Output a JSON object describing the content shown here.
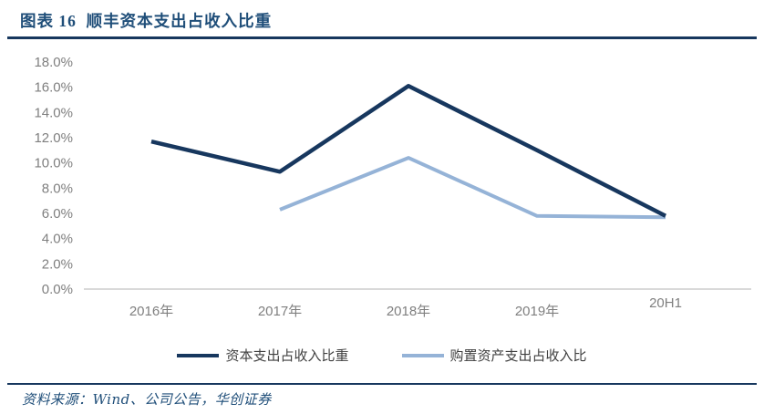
{
  "header": {
    "title": "图表 16  顺丰资本支出占收入比重"
  },
  "footer": {
    "source": "资料来源：Wind、公司公告，华创证券"
  },
  "colors": {
    "title_navy": "#1F4E79",
    "rule_navy": "#17375E",
    "series_dark": "#17375E",
    "series_light": "#95B3D7",
    "axis_line_gray": "#D9D9D9",
    "tick_label_gray": "#7F7F7F",
    "legend_text_gray": "#404040"
  },
  "chart_data": {
    "type": "line",
    "title": "顺丰资本支出占收入比重",
    "categories": [
      "2016年",
      "2017年",
      "2018年",
      "2019年",
      "20H1"
    ],
    "series": [
      {
        "name": "资本支出占收入比重",
        "color": "#17375E",
        "values": [
          11.7,
          9.3,
          16.1,
          11.0,
          5.8
        ]
      },
      {
        "name": "购置资产支出占收入比",
        "color": "#95B3D7",
        "values": [
          null,
          6.3,
          10.4,
          5.8,
          5.7
        ]
      }
    ],
    "ylim": [
      0,
      18
    ],
    "ytick_step": 2,
    "ytick_labels_top_to_bottom": [
      "18.0%",
      "16.0%",
      "14.0%",
      "12.0%",
      "10.0%",
      "8.0%",
      "6.0%",
      "4.0%",
      "2.0%",
      "0.0%"
    ],
    "xlabel": "",
    "ylabel": "",
    "grid": false,
    "legend_position": "bottom"
  }
}
